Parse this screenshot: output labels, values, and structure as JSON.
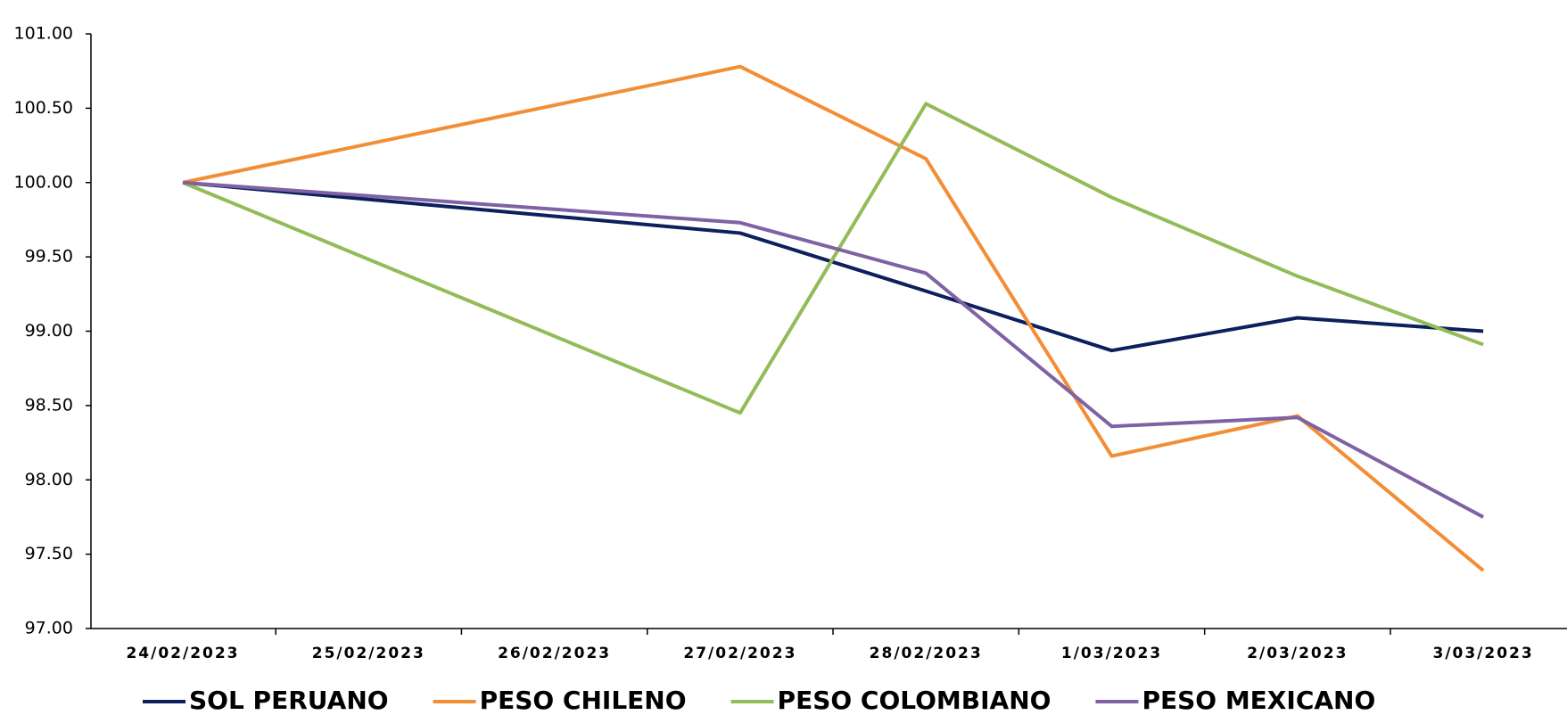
{
  "chart_data": {
    "type": "line",
    "x": [
      "24/02/2023",
      "27/02/2023",
      "28/02/2023",
      "1/03/2023",
      "2/03/2023",
      "3/03/2023"
    ],
    "xticks": [
      "24/02/2023",
      "25/02/2023",
      "26/02/2023",
      "27/02/2023",
      "28/02/2023",
      "1/03/2023",
      "2/03/2023",
      "3/03/2023"
    ],
    "series": [
      {
        "name": "SOL PERUANO",
        "color": "#0d1f5c",
        "values": [
          100,
          99.66,
          99.27,
          98.87,
          99.09,
          99.0
        ]
      },
      {
        "name": "PESO CHILENO",
        "color": "#f28e35",
        "values": [
          100,
          100.78,
          100.16,
          98.16,
          98.43,
          97.39
        ]
      },
      {
        "name": "PESO COLOMBIANO",
        "color": "#93bb57",
        "values": [
          100,
          98.45,
          100.53,
          99.9,
          99.37,
          98.91
        ]
      },
      {
        "name": "PESO MEXICANO",
        "color": "#7f62a3",
        "values": [
          100,
          99.73,
          99.39,
          98.36,
          98.42,
          97.75
        ]
      }
    ],
    "ylim": [
      97,
      101
    ],
    "yticks": [
      {
        "value": 97,
        "label": "97.00"
      },
      {
        "value": 97.5,
        "label": "97.50"
      },
      {
        "value": 98,
        "label": "98.00"
      },
      {
        "value": 98.5,
        "label": "98.50"
      },
      {
        "value": 99,
        "label": "99.00"
      },
      {
        "value": 99.5,
        "label": "99.50"
      },
      {
        "value": 100,
        "label": "100.00"
      },
      {
        "value": 100.5,
        "label": "100.50"
      },
      {
        "value": 101,
        "label": "101.00"
      }
    ],
    "grid": false,
    "legend": "bottom"
  }
}
